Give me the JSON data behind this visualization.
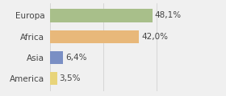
{
  "categories": [
    "Europa",
    "Africa",
    "Asia",
    "America"
  ],
  "values": [
    48.1,
    42.0,
    6.4,
    3.5
  ],
  "labels": [
    "48,1%",
    "42,0%",
    "6,4%",
    "3,5%"
  ],
  "bar_colors": [
    "#a8bf8a",
    "#e8b87a",
    "#7a8fc4",
    "#e8d47a"
  ],
  "background_color": "#f0f0f0",
  "xlim": [
    0,
    70
  ],
  "bar_height": 0.62,
  "label_fontsize": 7.5,
  "tick_fontsize": 7.5
}
